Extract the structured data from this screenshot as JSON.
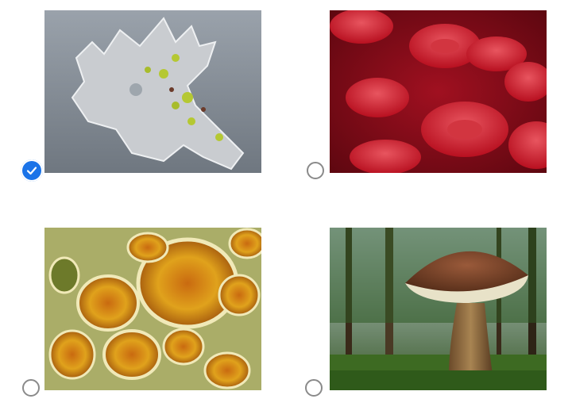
{
  "question": {
    "selected_index": 0,
    "options": [
      {
        "image": "amoeba-micrograph",
        "selected": true
      },
      {
        "image": "red-blood-cells",
        "selected": false
      },
      {
        "image": "plant-tissue-micrograph",
        "selected": false
      },
      {
        "image": "mushroom-in-forest",
        "selected": false
      }
    ]
  },
  "colors": {
    "accent": "#1a73e8",
    "radio_border": "#8a8a8a"
  }
}
